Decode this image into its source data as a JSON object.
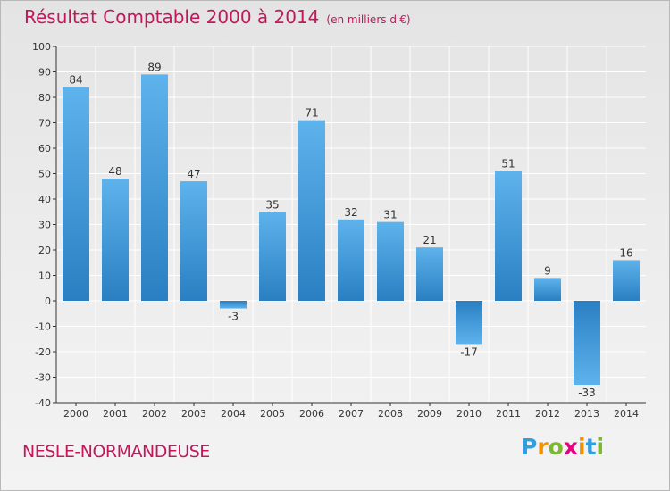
{
  "chart_data": {
    "type": "bar",
    "title": "Résultat Comptable 2000 à 2014",
    "subtitle": "(en milliers d'€)",
    "categories": [
      "2000",
      "2001",
      "2002",
      "2003",
      "2004",
      "2005",
      "2006",
      "2007",
      "2008",
      "2009",
      "2010",
      "2011",
      "2012",
      "2013",
      "2014"
    ],
    "values": [
      84,
      48,
      89,
      47,
      -3,
      35,
      71,
      32,
      31,
      21,
      -17,
      51,
      9,
      -33,
      16
    ],
    "ylim": [
      -40,
      100
    ],
    "yticks": [
      100,
      90,
      80,
      70,
      60,
      50,
      40,
      30,
      20,
      10,
      0,
      -10,
      -20,
      -30,
      -40
    ],
    "xlabel": "",
    "ylabel": "",
    "grid": true,
    "bar_color_light": "#5eb3ec",
    "bar_color_dark": "#2a7fc2"
  },
  "footer": {
    "place": "NESLE-NORMANDEUSE",
    "logo_letters": [
      "P",
      "r",
      "o",
      "x",
      "i",
      "t",
      "i"
    ],
    "logo_colors": [
      "#2d9fe2",
      "#f39200",
      "#7cb82f",
      "#e6007e",
      "#f39200",
      "#2d9fe2",
      "#7cb82f"
    ]
  },
  "colors": {
    "title": "#c2185b",
    "axis": "#333333",
    "grid": "#ffffff"
  }
}
